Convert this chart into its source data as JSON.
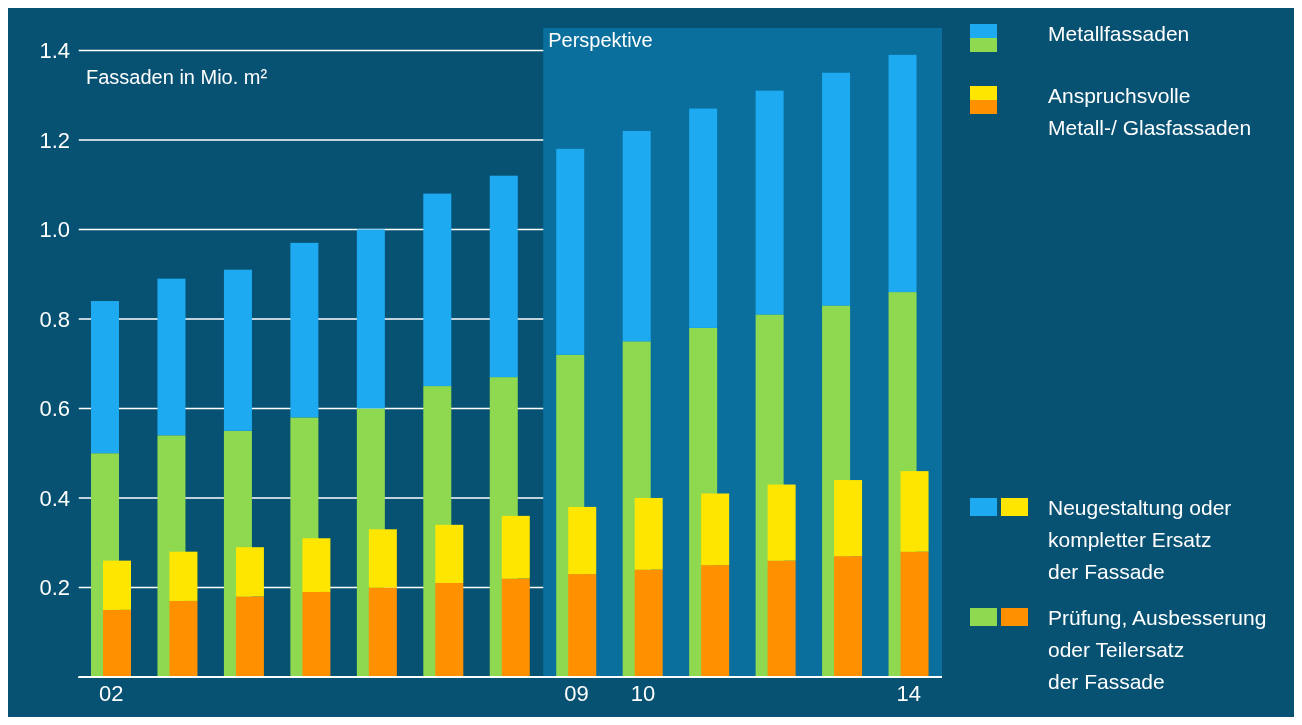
{
  "chart_data": [
    {
      "type": "bar",
      "ylabel": "Fassaden in Mio. m²",
      "categories": [
        "02",
        null,
        null,
        null,
        null,
        null,
        null,
        "09",
        "10",
        null,
        null,
        null,
        "14"
      ],
      "stacked": true,
      "series": [
        {
          "color": "#8ed94f",
          "values": [
            0.5,
            0.54,
            0.55,
            0.58,
            0.6,
            0.65,
            0.67,
            0.72,
            0.75,
            0.78,
            0.81,
            0.83,
            0.86
          ]
        },
        {
          "color": "#1eaaf1",
          "values": [
            0.34,
            0.35,
            0.36,
            0.39,
            0.4,
            0.43,
            0.45,
            0.46,
            0.47,
            0.49,
            0.5,
            0.52,
            0.53
          ]
        }
      ],
      "ylim": [
        0,
        1.45
      ],
      "yticks": [
        0.2,
        0.4,
        0.6,
        0.8,
        {
          "value": 1.0,
          "label": "1.0"
        },
        1.2,
        1.4
      ],
      "grid": "y",
      "bands": [
        {
          "axis": "x",
          "from": "09",
          "to": "14",
          "label": "Perspektive",
          "color": "#0a6f9c"
        }
      ],
      "legend": "right",
      "annotations": [
        "Metallfassaden",
        "Anspruchsvolle\nMetall-/ Glasfassaden",
        "Neugestaltung oder\nkompletter Ersatz\nder Fassade",
        "Prüfung, Ausbesserung\noder Teilersatz\nder Fassade"
      ]
    },
    {
      "type": "bar",
      "categories": [
        "02",
        null,
        null,
        null,
        null,
        null,
        null,
        "09",
        "10",
        null,
        null,
        null,
        "14"
      ],
      "stacked": true,
      "series": [
        {
          "color": "#ff9000",
          "values": [
            0.15,
            0.17,
            0.18,
            0.19,
            0.2,
            0.21,
            0.22,
            0.23,
            0.24,
            0.25,
            0.26,
            0.27,
            0.28
          ]
        },
        {
          "color": "#ffe600",
          "values": [
            0.11,
            0.11,
            0.11,
            0.12,
            0.13,
            0.13,
            0.14,
            0.15,
            0.16,
            0.16,
            0.17,
            0.17,
            0.18
          ]
        }
      ],
      "ylim": [
        0,
        1.45
      ],
      "tick_labels": false
    }
  ]
}
